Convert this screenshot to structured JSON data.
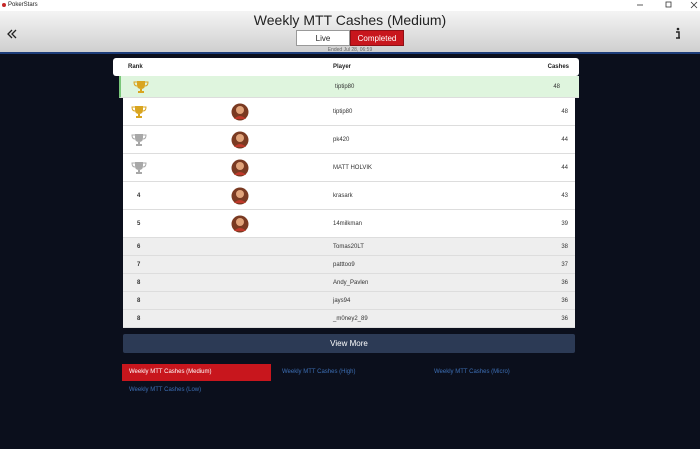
{
  "window": {
    "title": "PokerStars"
  },
  "header": {
    "title": "Weekly MTT Cashes (Medium)",
    "tabs": [
      "Live",
      "Completed"
    ],
    "active_tab": 1,
    "ended": "Ended Jul 28, 06:59"
  },
  "table": {
    "columns": [
      "Rank",
      "Player",
      "Cashes"
    ],
    "rows": [
      {
        "rank": null,
        "trophy": "gold",
        "avatar": false,
        "player": "tiptip80",
        "cashes": 48,
        "highlight": true
      },
      {
        "rank": null,
        "trophy": "gold",
        "avatar": true,
        "player": "tiptip80",
        "cashes": 48
      },
      {
        "rank": null,
        "trophy": "silver",
        "avatar": true,
        "player": "pk420",
        "cashes": 44
      },
      {
        "rank": null,
        "trophy": "silver",
        "avatar": true,
        "player": "MATT HOLVIK",
        "cashes": 44
      },
      {
        "rank": 4,
        "avatar": true,
        "player": "krasark",
        "cashes": 43
      },
      {
        "rank": 5,
        "avatar": true,
        "player": "14milkman",
        "cashes": 39
      },
      {
        "rank": 6,
        "player": "Tomas20LT",
        "cashes": 38
      },
      {
        "rank": 7,
        "player": "patttoo9",
        "cashes": 37
      },
      {
        "rank": 8,
        "player": "Andy_Pavlen",
        "cashes": 36
      },
      {
        "rank": 8,
        "player": "jays94",
        "cashes": 36
      },
      {
        "rank": 8,
        "player": "_m0ney2_89",
        "cashes": 36
      }
    ]
  },
  "view_more": "View More",
  "leaderboards": {
    "items": [
      "Weekly MTT Cashes (Medium)",
      "Weekly MTT Cashes (High)",
      "Weekly MTT Cashes (Micro)",
      "Weekly MTT Cashes (Low)"
    ],
    "active": 0
  }
}
